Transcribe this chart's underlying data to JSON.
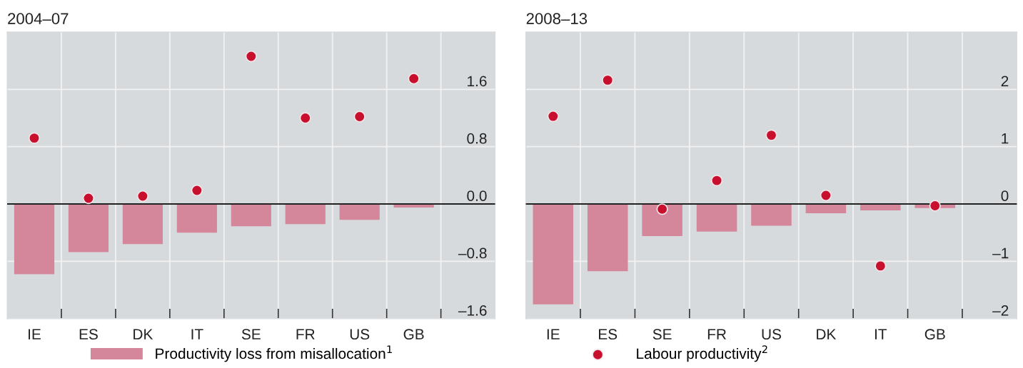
{
  "chart_data": [
    {
      "type": "bar",
      "title": "2004–07",
      "categories": [
        "IE",
        "ES",
        "DK",
        "IT",
        "SE",
        "FR",
        "US",
        "GB"
      ],
      "ylim": [
        -1.6,
        2.4
      ],
      "yticks": [
        {
          "value": -1.6,
          "label": "–1.6"
        },
        {
          "value": -0.8,
          "label": "–0.8"
        },
        {
          "value": 0,
          "label": "0.0"
        },
        {
          "value": 0.8,
          "label": "0.8"
        },
        {
          "value": 1.6,
          "label": "1.6"
        }
      ],
      "grid": true,
      "legend": "bottom",
      "ref_lines": [
        {
          "axis": "y",
          "value": 0,
          "color": "#222222"
        }
      ],
      "series": [
        {
          "name": "Productivity loss from misallocation$^{1}$",
          "color": "#d4879a",
          "values": [
            -0.98,
            -0.67,
            -0.56,
            -0.4,
            -0.31,
            -0.28,
            -0.22,
            -0.05
          ]
        },
        {
          "name": "Labour productivity$^{2}$",
          "type": "scatter",
          "color": "#c8102e",
          "values": [
            0.92,
            0.08,
            0.11,
            0.19,
            2.06,
            1.2,
            1.22,
            1.75
          ]
        }
      ]
    },
    {
      "type": "bar",
      "title": "2008–13",
      "categories": [
        "IE",
        "ES",
        "SE",
        "FR",
        "US",
        "DK",
        "IT",
        "GB"
      ],
      "ylim": [
        -2,
        3
      ],
      "yticks": [
        {
          "value": -2,
          "label": "–2"
        },
        {
          "value": -1,
          "label": "–1"
        },
        0,
        1,
        2
      ],
      "grid": true,
      "legend": "bottom",
      "ref_lines": [
        {
          "axis": "y",
          "value": 0,
          "color": "#222222"
        }
      ],
      "series": [
        {
          "name": "Productivity loss from misallocation$^{1}$",
          "color": "#d4879a",
          "values": [
            -1.75,
            -1.17,
            -0.56,
            -0.48,
            -0.38,
            -0.16,
            -0.11,
            -0.07
          ]
        },
        {
          "name": "Labour productivity$^{2}$",
          "type": "scatter",
          "color": "#c8102e",
          "values": [
            1.53,
            2.16,
            -0.09,
            0.41,
            1.2,
            0.15,
            -1.08,
            -0.03
          ]
        }
      ]
    }
  ]
}
